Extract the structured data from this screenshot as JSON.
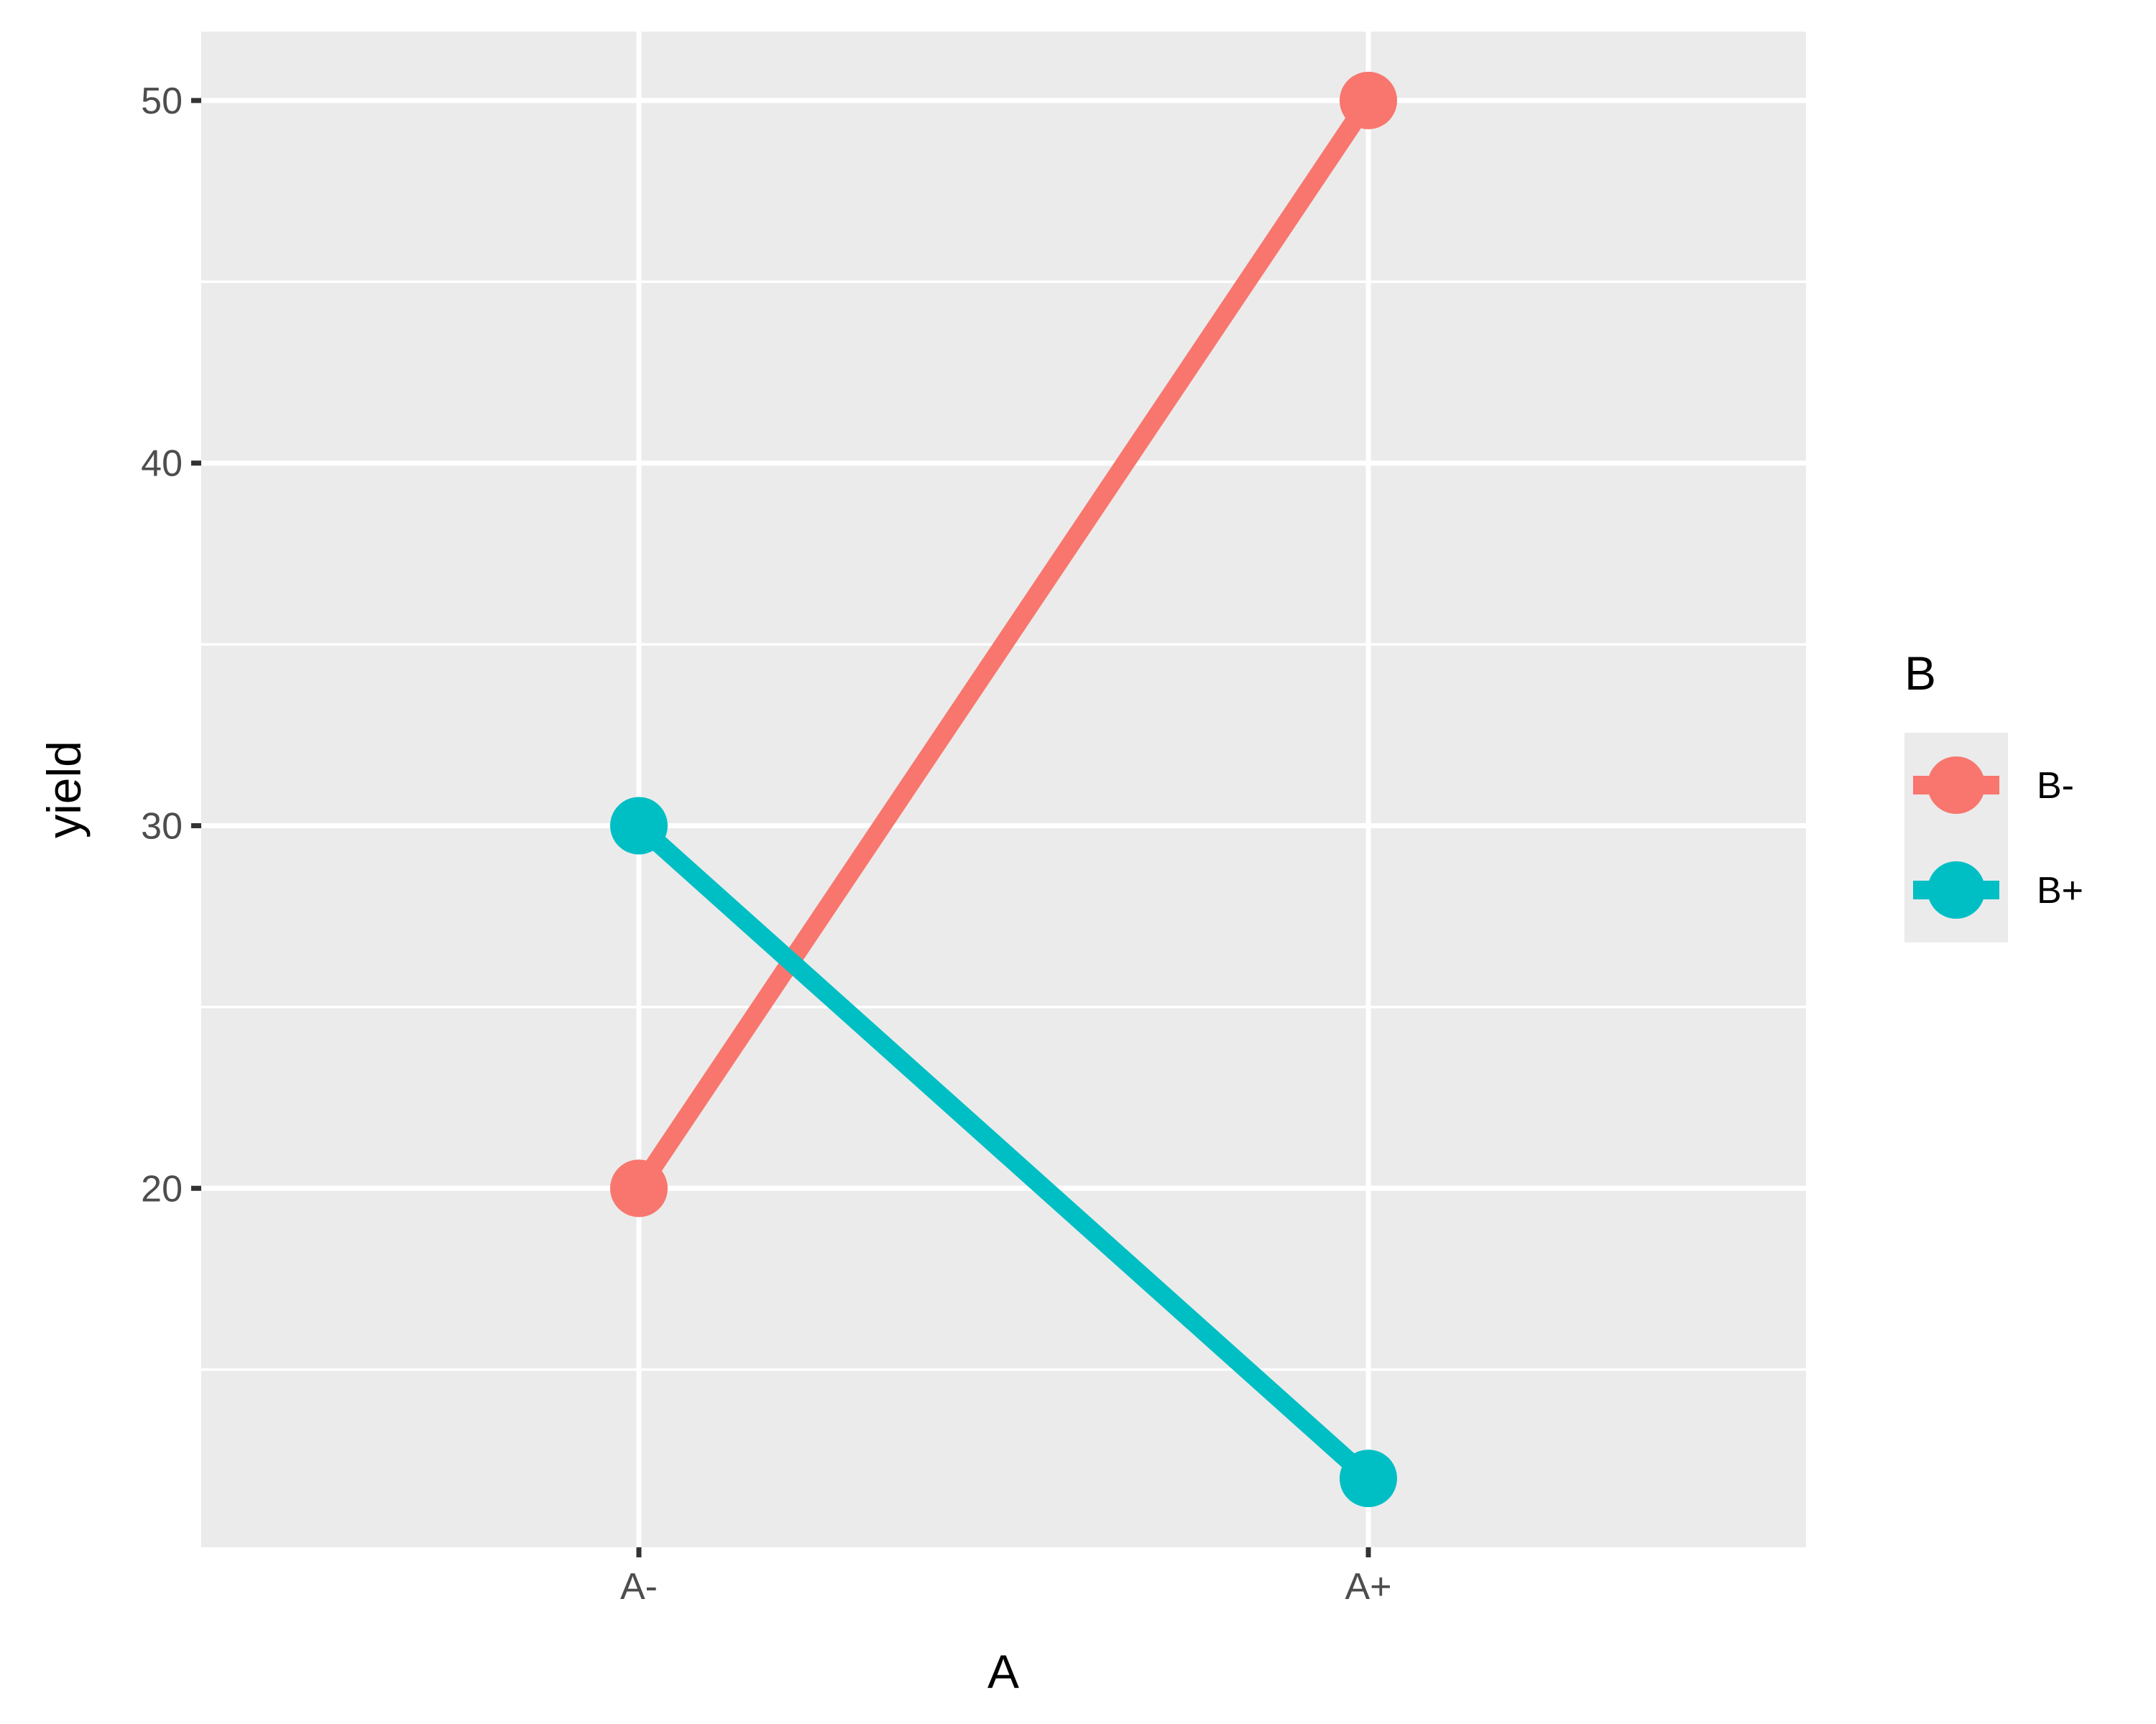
{
  "chart_data": {
    "type": "line",
    "categories": [
      "A-",
      "A+"
    ],
    "series": [
      {
        "name": "B-",
        "values": [
          20,
          50
        ],
        "color": "#F8766D"
      },
      {
        "name": "B+",
        "values": [
          30,
          12
        ],
        "color": "#00BFC4"
      }
    ],
    "xlabel": "A",
    "ylabel": "yield",
    "legend_title": "B",
    "legend_position": "right",
    "ylim": [
      10.1,
      51.9
    ],
    "yticks": [
      20,
      30,
      40,
      50
    ],
    "ytick_labels": [
      "20",
      "30",
      "40",
      "50"
    ],
    "grid": true,
    "panel_color": "#EBEBEB",
    "grid_color": "#FFFFFF"
  }
}
